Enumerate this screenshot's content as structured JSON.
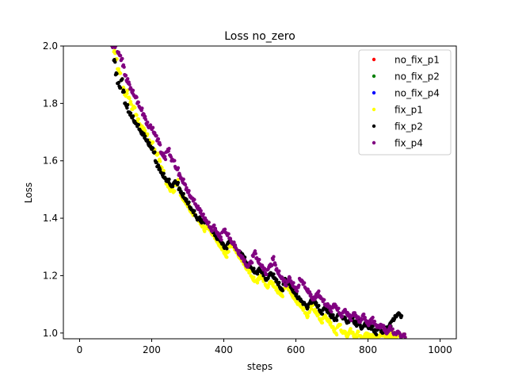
{
  "chart_data": {
    "type": "scatter",
    "title": "Loss no_zero",
    "xlabel": "steps",
    "ylabel": "Loss",
    "xlim": [
      -45,
      1045
    ],
    "ylim": [
      0.98,
      2.0
    ],
    "xticks": [
      0,
      200,
      400,
      600,
      800,
      1000
    ],
    "yticks": [
      1.0,
      1.2,
      1.4,
      1.6,
      1.8,
      2.0
    ],
    "xtick_labels": [
      "0",
      "200",
      "400",
      "600",
      "800",
      "1000"
    ],
    "ytick_labels": [
      "1.0",
      "1.2",
      "1.4",
      "1.6",
      "1.8",
      "2.0"
    ],
    "grid": false,
    "legend_position": "top-right",
    "x_start": 90,
    "x_step": 5,
    "series": [
      {
        "name": "no_fix_p1",
        "color": "#ff0000",
        "points_in_view": false,
        "values": []
      },
      {
        "name": "no_fix_p2",
        "color": "#008000",
        "points_in_view": false,
        "values": []
      },
      {
        "name": "no_fix_p4",
        "color": "#0000ff",
        "points_in_view": false,
        "values": []
      },
      {
        "name": "fix_p1",
        "color": "#ffff00",
        "points_in_view": true,
        "values": [
          2.0,
          1.98,
          1.95,
          1.92,
          1.91,
          1.88,
          1.85,
          1.83,
          1.84,
          1.82,
          1.8,
          1.78,
          1.79,
          1.76,
          1.74,
          1.73,
          1.72,
          1.71,
          1.7,
          1.69,
          1.67,
          1.65,
          1.66,
          1.64,
          1.63,
          1.62,
          1.6,
          1.58,
          1.56,
          1.54,
          1.52,
          1.51,
          1.5,
          1.5,
          1.49,
          1.52,
          1.53,
          1.5,
          1.48,
          1.47,
          1.46,
          1.45,
          1.44,
          1.43,
          1.42,
          1.41,
          1.41,
          1.4,
          1.39,
          1.38,
          1.37,
          1.36,
          1.37,
          1.38,
          1.36,
          1.35,
          1.34,
          1.33,
          1.32,
          1.31,
          1.3,
          1.29,
          1.28,
          1.27,
          1.28,
          1.3,
          1.31,
          1.3,
          1.29,
          1.28,
          1.27,
          1.26,
          1.25,
          1.24,
          1.23,
          1.22,
          1.21,
          1.2,
          1.19,
          1.18,
          1.18,
          1.19,
          1.2,
          1.19,
          1.18,
          1.17,
          1.16,
          1.17,
          1.18,
          1.17,
          1.16,
          1.15,
          1.14,
          1.14,
          1.13,
          1.15,
          1.17,
          1.16,
          1.15,
          1.14,
          1.13,
          1.12,
          1.11,
          1.1,
          1.1,
          1.09,
          1.08,
          1.07,
          1.06,
          1.07,
          1.09,
          1.1,
          1.08,
          1.07,
          1.06,
          1.05,
          1.04,
          1.05,
          1.06,
          1.05,
          1.04,
          1.03,
          1.02,
          1.01,
          1.0,
          1.02,
          1.03,
          1.01,
          1.0,
          1.0,
          0.99,
          1.0,
          1.01,
          1.0,
          0.99,
          0.99,
          1.0,
          0.99,
          0.99,
          0.98,
          0.99,
          1.0,
          0.99,
          0.99,
          0.99,
          0.99,
          0.99,
          0.98,
          0.99,
          1.0,
          0.99,
          0.99,
          0.99,
          0.99,
          0.99,
          1.0,
          0.99,
          0.99,
          0.99,
          0.99,
          0.99,
          0.99,
          0.99
        ]
      },
      {
        "name": "fix_p2",
        "color": "#000000",
        "points_in_view": true,
        "values": [
          2.0,
          1.95,
          1.9,
          1.87,
          1.86,
          1.88,
          1.84,
          1.8,
          1.79,
          1.77,
          1.76,
          1.75,
          1.74,
          1.73,
          1.72,
          1.71,
          1.7,
          1.69,
          1.68,
          1.67,
          1.66,
          1.65,
          1.64,
          1.63,
          1.6,
          1.58,
          1.57,
          1.56,
          1.55,
          1.54,
          1.53,
          1.53,
          1.52,
          1.51,
          1.52,
          1.53,
          1.52,
          1.5,
          1.49,
          1.48,
          1.47,
          1.46,
          1.45,
          1.44,
          1.43,
          1.42,
          1.41,
          1.4,
          1.4,
          1.39,
          1.39,
          1.39,
          1.39,
          1.38,
          1.37,
          1.36,
          1.35,
          1.34,
          1.33,
          1.33,
          1.32,
          1.31,
          1.3,
          1.3,
          1.31,
          1.32,
          1.32,
          1.31,
          1.3,
          1.29,
          1.28,
          1.28,
          1.27,
          1.26,
          1.25,
          1.24,
          1.23,
          1.23,
          1.22,
          1.21,
          1.21,
          1.22,
          1.22,
          1.21,
          1.2,
          1.19,
          1.19,
          1.2,
          1.21,
          1.2,
          1.19,
          1.18,
          1.17,
          1.16,
          1.15,
          1.17,
          1.19,
          1.18,
          1.17,
          1.16,
          1.15,
          1.14,
          1.13,
          1.12,
          1.12,
          1.11,
          1.1,
          1.1,
          1.09,
          1.1,
          1.11,
          1.12,
          1.11,
          1.1,
          1.09,
          1.08,
          1.07,
          1.08,
          1.09,
          1.08,
          1.07,
          1.06,
          1.06,
          1.05,
          1.05,
          1.06,
          1.07,
          1.06,
          1.05,
          1.05,
          1.04,
          1.04,
          1.05,
          1.05,
          1.04,
          1.03,
          1.04,
          1.03,
          1.02,
          1.02,
          1.03,
          1.03,
          1.02,
          1.02,
          1.02,
          1.01,
          1.0,
          1.01,
          1.02,
          1.01,
          1.0,
          1.01,
          1.02,
          1.02,
          1.03,
          1.04,
          1.05,
          1.06,
          1.06,
          1.07,
          1.06
        ]
      },
      {
        "name": "fix_p4",
        "color": "#800080",
        "points_in_view": true,
        "values": [
          2.0,
          2.0,
          2.0,
          1.98,
          1.97,
          1.95,
          1.93,
          1.9,
          1.88,
          1.87,
          1.85,
          1.84,
          1.83,
          1.82,
          1.8,
          1.79,
          1.78,
          1.76,
          1.75,
          1.73,
          1.72,
          1.72,
          1.71,
          1.7,
          1.69,
          1.67,
          1.66,
          1.63,
          1.62,
          1.61,
          1.63,
          1.64,
          1.62,
          1.6,
          1.6,
          1.58,
          1.57,
          1.55,
          1.54,
          1.53,
          1.52,
          1.5,
          1.49,
          1.48,
          1.47,
          1.46,
          1.45,
          1.44,
          1.43,
          1.42,
          1.41,
          1.4,
          1.39,
          1.38,
          1.37,
          1.36,
          1.37,
          1.36,
          1.35,
          1.34,
          1.33,
          1.35,
          1.36,
          1.35,
          1.34,
          1.33,
          1.32,
          1.31,
          1.3,
          1.29,
          1.28,
          1.27,
          1.26,
          1.25,
          1.24,
          1.23,
          1.24,
          1.25,
          1.27,
          1.28,
          1.26,
          1.25,
          1.24,
          1.23,
          1.22,
          1.21,
          1.22,
          1.23,
          1.24,
          1.26,
          1.24,
          1.22,
          1.21,
          1.2,
          1.19,
          1.18,
          1.17,
          1.18,
          1.19,
          1.18,
          1.17,
          1.16,
          1.15,
          1.16,
          1.19,
          1.18,
          1.17,
          1.16,
          1.15,
          1.14,
          1.13,
          1.12,
          1.12,
          1.13,
          1.14,
          1.13,
          1.12,
          1.11,
          1.1,
          1.1,
          1.09,
          1.08,
          1.09,
          1.1,
          1.09,
          1.08,
          1.07,
          1.06,
          1.07,
          1.08,
          1.07,
          1.06,
          1.05,
          1.06,
          1.07,
          1.06,
          1.05,
          1.04,
          1.05,
          1.06,
          1.05,
          1.04,
          1.03,
          1.04,
          1.05,
          1.04,
          1.03,
          1.02,
          1.02,
          1.03,
          1.02,
          1.01,
          1.0,
          1.01,
          1.02,
          1.01,
          1.0,
          1.0,
          1.0,
          1.0,
          0.99,
          0.99,
          0.99
        ]
      }
    ]
  }
}
